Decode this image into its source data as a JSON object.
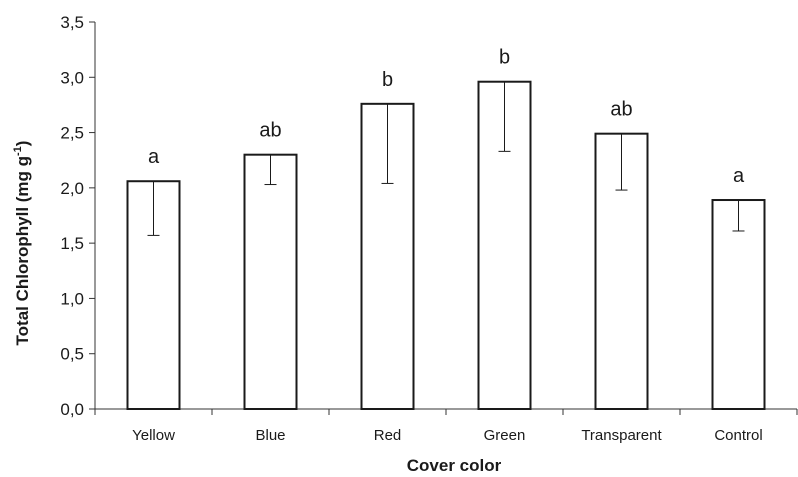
{
  "chart_data": {
    "type": "bar",
    "categories": [
      "Yellow",
      "Blue",
      "Red",
      "Green",
      "Transparent",
      "Control"
    ],
    "values": [
      2.06,
      2.3,
      2.76,
      2.96,
      2.49,
      1.89
    ],
    "error_low": [
      1.57,
      2.03,
      2.04,
      2.33,
      1.98,
      1.61
    ],
    "error_high": [
      2.06,
      2.3,
      2.76,
      2.96,
      2.49,
      1.89
    ],
    "significance_labels": [
      "a",
      "ab",
      "b",
      "b",
      "ab",
      "a"
    ],
    "xlabel": "Cover color",
    "ylabel_main": "Total Chlorophyll (mg g",
    "ylabel_sup": "-1",
    "ylabel_end": ")",
    "ylim": [
      0,
      3.5
    ],
    "yticks": [
      "0,0",
      "0,5",
      "1,0",
      "1,5",
      "2,0",
      "2,5",
      "3,0",
      "3,5"
    ],
    "ytick_values": [
      0,
      0.5,
      1.0,
      1.5,
      2.0,
      2.5,
      3.0,
      3.5
    ],
    "grid": false,
    "legend": "none"
  }
}
